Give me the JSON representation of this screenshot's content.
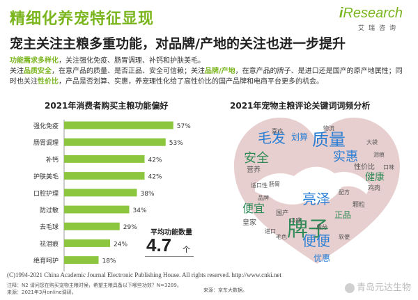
{
  "header": {
    "title": "精细化养宠特征显现",
    "subtitle": "宠主关注主粮多重功能，对品牌/产地的关注也进一步提升"
  },
  "logo": {
    "main_i": "i",
    "main_rest": "Research",
    "sub": "艾瑞咨询",
    "color": "#7ab51d"
  },
  "description": {
    "line1_hl": "功能需求多样化",
    "line1_rest": "，关注强化免疫、肠胃调理、补钙和护肤美毛。",
    "line2_pre": "关注",
    "line2_hl1": "品质安全",
    "line2_mid": "，在意产品的质量、是否正品、安全可信赖；关注",
    "line2_hl2": "品牌/产地",
    "line2_rest": "，在意产品的牌子、是进口还是国产的原产地属性；同时也关注",
    "line2_hl3": "性价比",
    "line2_end": "，产品是否划算、实惠，养宠理性化给了高性价比的国产品牌和电商平台更多的机会。"
  },
  "left_chart_title": "2021年消费者购买主粮功能偏好",
  "right_chart_title": "2021年宠物主粮评论关键词词频分析",
  "chart_data": {
    "type": "bar",
    "orientation": "horizontal",
    "title": "2021年消费者购买主粮功能偏好",
    "categories": [
      "强化免疫",
      "肠胃调理",
      "补钙",
      "护肤美毛",
      "口腔护理",
      "防过敏",
      "去毛球",
      "祛泪痕",
      "绝育呵护"
    ],
    "values": [
      57,
      53,
      42,
      42,
      38,
      34,
      29,
      24,
      18
    ],
    "value_suffix": "%",
    "xlim": [
      0,
      60
    ],
    "bar_color": "#8cc63f",
    "grid": false
  },
  "average": {
    "label": "平均功能数量",
    "value": "4.7",
    "unit": "个"
  },
  "word_cloud": {
    "heart_color": "#e8cfcf",
    "words": [
      {
        "text": "牌子",
        "color": "#2e8b57"
      },
      {
        "text": "质量",
        "color": "#2a7fd4"
      },
      {
        "text": "毛发",
        "color": "#2a7fd4"
      },
      {
        "text": "实惠",
        "color": "#2a7fd4"
      },
      {
        "text": "安全",
        "color": "#2e8b57"
      },
      {
        "text": "亮泽",
        "color": "#2a7fd4"
      },
      {
        "text": "便便",
        "color": "#2a7fd4"
      },
      {
        "text": "便宜",
        "color": "#2e8b57"
      },
      {
        "text": "健康",
        "color": "#2e8b57"
      },
      {
        "text": "划算",
        "color": "#2a7fd4"
      },
      {
        "text": "正品",
        "color": "#2e8b57"
      },
      {
        "text": "优惠",
        "color": "#2a7fd4"
      },
      {
        "text": "性价比",
        "color": "#555555"
      },
      {
        "text": "营养",
        "color": "#555555"
      },
      {
        "text": "皇家",
        "color": "#555555"
      },
      {
        "text": "鸡肉",
        "color": "#555555"
      },
      {
        "text": "颗粒",
        "color": "#555555"
      },
      {
        "text": "国产",
        "color": "#555555"
      },
      {
        "text": "进口",
        "color": "#555555"
      },
      {
        "text": "适口性",
        "color": "#555555"
      },
      {
        "text": "物流",
        "color": "#555555"
      },
      {
        "text": "泪痕",
        "color": "#555555"
      },
      {
        "text": "肠胃",
        "color": "#555555"
      },
      {
        "text": "毛色",
        "color": "#555555"
      },
      {
        "text": "口感",
        "color": "#555555"
      },
      {
        "text": "软便",
        "color": "#555555"
      },
      {
        "text": "喜欢",
        "color": "#555555"
      },
      {
        "text": "大袋",
        "color": "#555555"
      },
      {
        "text": "成分",
        "color": "#555555"
      },
      {
        "text": "品牌",
        "color": "#555555"
      },
      {
        "text": "配方",
        "color": "#555555"
      },
      {
        "text": "口味",
        "color": "#555555"
      }
    ]
  },
  "footer": {
    "copyright": "(C)1994-2021 China Academic Journal Electronic Publishing House. All rights reserved.    http://www.cnki.net",
    "note_line1": "注释：N2 请问您在购买宠物主粮时候，希望主粮具备以下哪些功效？N=3289。",
    "note_line2": "来源：2021年3月online调研。",
    "source_right": "来源：京东大数据。",
    "watermark": "青岛元达生物"
  }
}
